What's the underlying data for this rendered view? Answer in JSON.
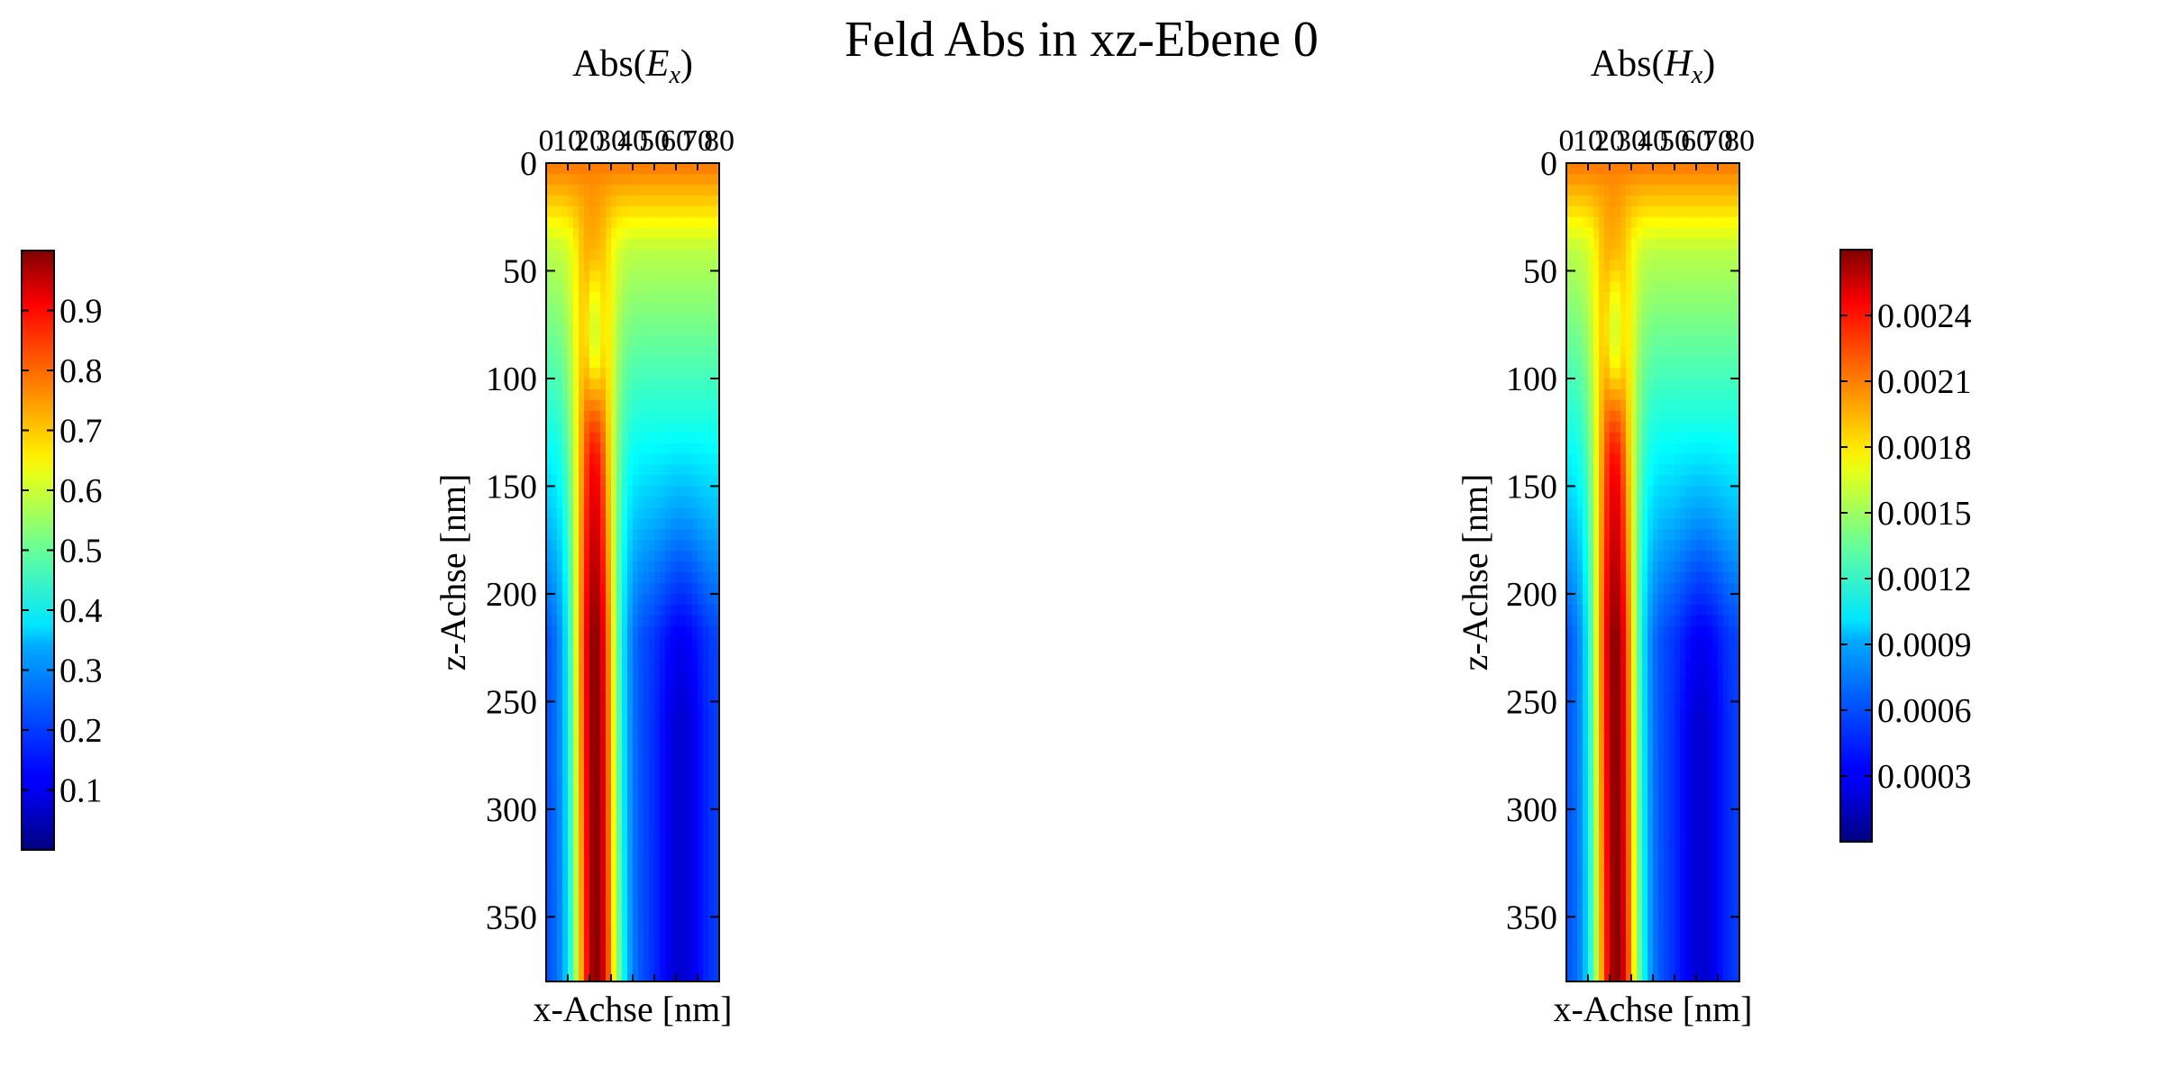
{
  "figure": {
    "title": "Feld Abs in xz-Ebene 0"
  },
  "chart_data": [
    {
      "type": "heatmap",
      "title_prefix": "Abs(",
      "title_var": "E",
      "title_sub": "x",
      "title_suffix": ")",
      "xlabel": "x-Achse [nm]",
      "ylabel": "z-Achse [nm]",
      "x_ticks": [
        "0",
        "10",
        "20",
        "30",
        "40",
        "50",
        "60",
        "70",
        "80"
      ],
      "y_ticks": [
        "0",
        "50",
        "100",
        "150",
        "200",
        "250",
        "300",
        "350"
      ],
      "xlim": [
        0,
        80
      ],
      "ylim": [
        380,
        0
      ],
      "x_axis_position": "top",
      "colormap": "jet",
      "colorbar": {
        "position": "left",
        "range": [
          0.0,
          1.0
        ],
        "ticks": [
          "0.1",
          "0.2",
          "0.3",
          "0.4",
          "0.5",
          "0.6",
          "0.7",
          "0.8",
          "0.9"
        ]
      }
    },
    {
      "type": "heatmap",
      "title_prefix": "Abs(",
      "title_var": "H",
      "title_sub": "x",
      "title_suffix": ")",
      "xlabel": "x-Achse [nm]",
      "ylabel": "z-Achse [nm]",
      "x_ticks": [
        "0",
        "10",
        "20",
        "30",
        "40",
        "50",
        "60",
        "70",
        "80"
      ],
      "y_ticks": [
        "0",
        "50",
        "100",
        "150",
        "200",
        "250",
        "300",
        "350"
      ],
      "xlim": [
        0,
        80
      ],
      "ylim": [
        380,
        0
      ],
      "x_axis_position": "top",
      "colormap": "jet",
      "colorbar": {
        "position": "right",
        "range": [
          0.0,
          0.0027
        ],
        "ticks": [
          "0.0003",
          "0.0006",
          "0.0009",
          "0.0012",
          "0.0015",
          "0.0018",
          "0.0021",
          "0.0024"
        ]
      }
    }
  ]
}
